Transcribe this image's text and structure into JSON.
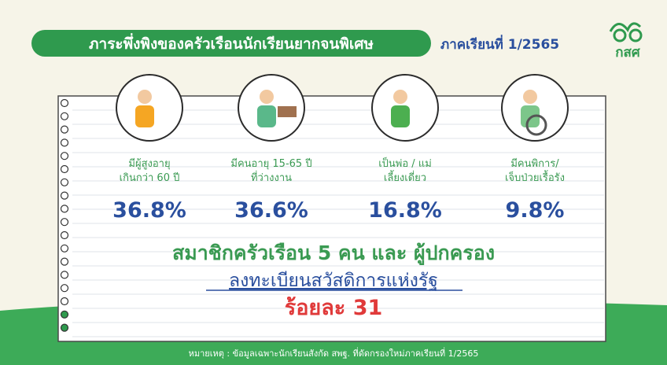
{
  "header": {
    "title": "ภาระพึ่งพิงของครัวเรือนนักเรียนยากจนพิเศษ",
    "term": "ภาคเรียนที่ 1/2565",
    "logo": "กสศ"
  },
  "stats": [
    {
      "label_lines": [
        "มีผู้สูงอายุ",
        "เกินกว่า 60 ปี"
      ],
      "value": "36.8%"
    },
    {
      "label_lines": [
        "มีคนอายุ 15-65 ปี",
        "ที่ว่างงาน"
      ],
      "value": "36.6%"
    },
    {
      "label_lines": [
        "เป็นพ่อ / แม่",
        "เลี้ยงเดี่ยว"
      ],
      "value": "16.8%"
    },
    {
      "label_lines": [
        "มีคนพิการ/",
        "เจ็บป่วยเรื้อรัง"
      ],
      "value": "9.8%"
    }
  ],
  "highlight": {
    "line1": "สมาชิกครัวเรือน 5 คน และ ผู้ปกครอง",
    "line2": "ลงทะเบียนสวัสดิการแห่งรัฐ",
    "line3": "ร้อยละ 31"
  },
  "footnote": "หมายเหตุ : ข้อมูลเฉพาะนักเรียนสังกัด สพฐ. ที่ดัดกรองใหม่ภาคเรียนที่ 1/2565"
}
